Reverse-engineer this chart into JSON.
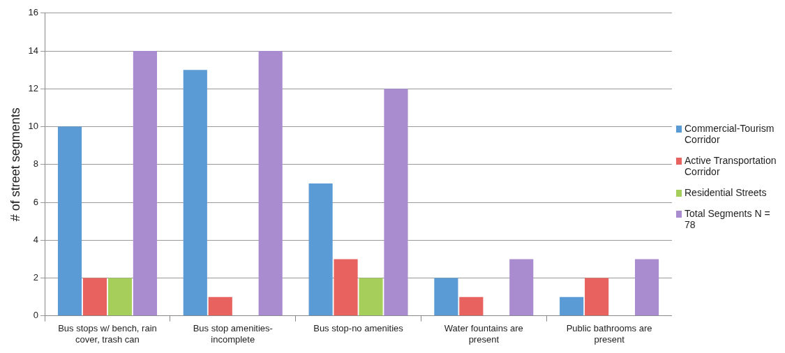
{
  "chart_data": {
    "type": "bar",
    "ylabel": "# of street segments",
    "categories": [
      "Bus stops w/ bench, rain cover, trash can",
      "Bus stop amenities- incomplete",
      "Bus stop-no amenities",
      "Water fountains are present",
      "Public bathrooms are present"
    ],
    "series": [
      {
        "name": "Commercial-Tourism Corridor",
        "color": "#5b9bd5",
        "values": [
          10,
          13,
          7,
          2,
          1
        ]
      },
      {
        "name": "Active Transportation Corridor",
        "color": "#e8625f",
        "values": [
          2,
          1,
          3,
          1,
          2
        ]
      },
      {
        "name": "Residential Streets",
        "color": "#a5cf5a",
        "values": [
          2,
          0,
          2,
          0,
          0
        ]
      },
      {
        "name": "Total Segments N = 78",
        "color": "#a98bd0",
        "values": [
          14,
          14,
          12,
          3,
          3
        ]
      }
    ],
    "ylim": [
      0,
      16
    ],
    "yticks": [
      0,
      2,
      4,
      6,
      8,
      10,
      12,
      14,
      16
    ],
    "grid": "y",
    "legend": "right"
  }
}
